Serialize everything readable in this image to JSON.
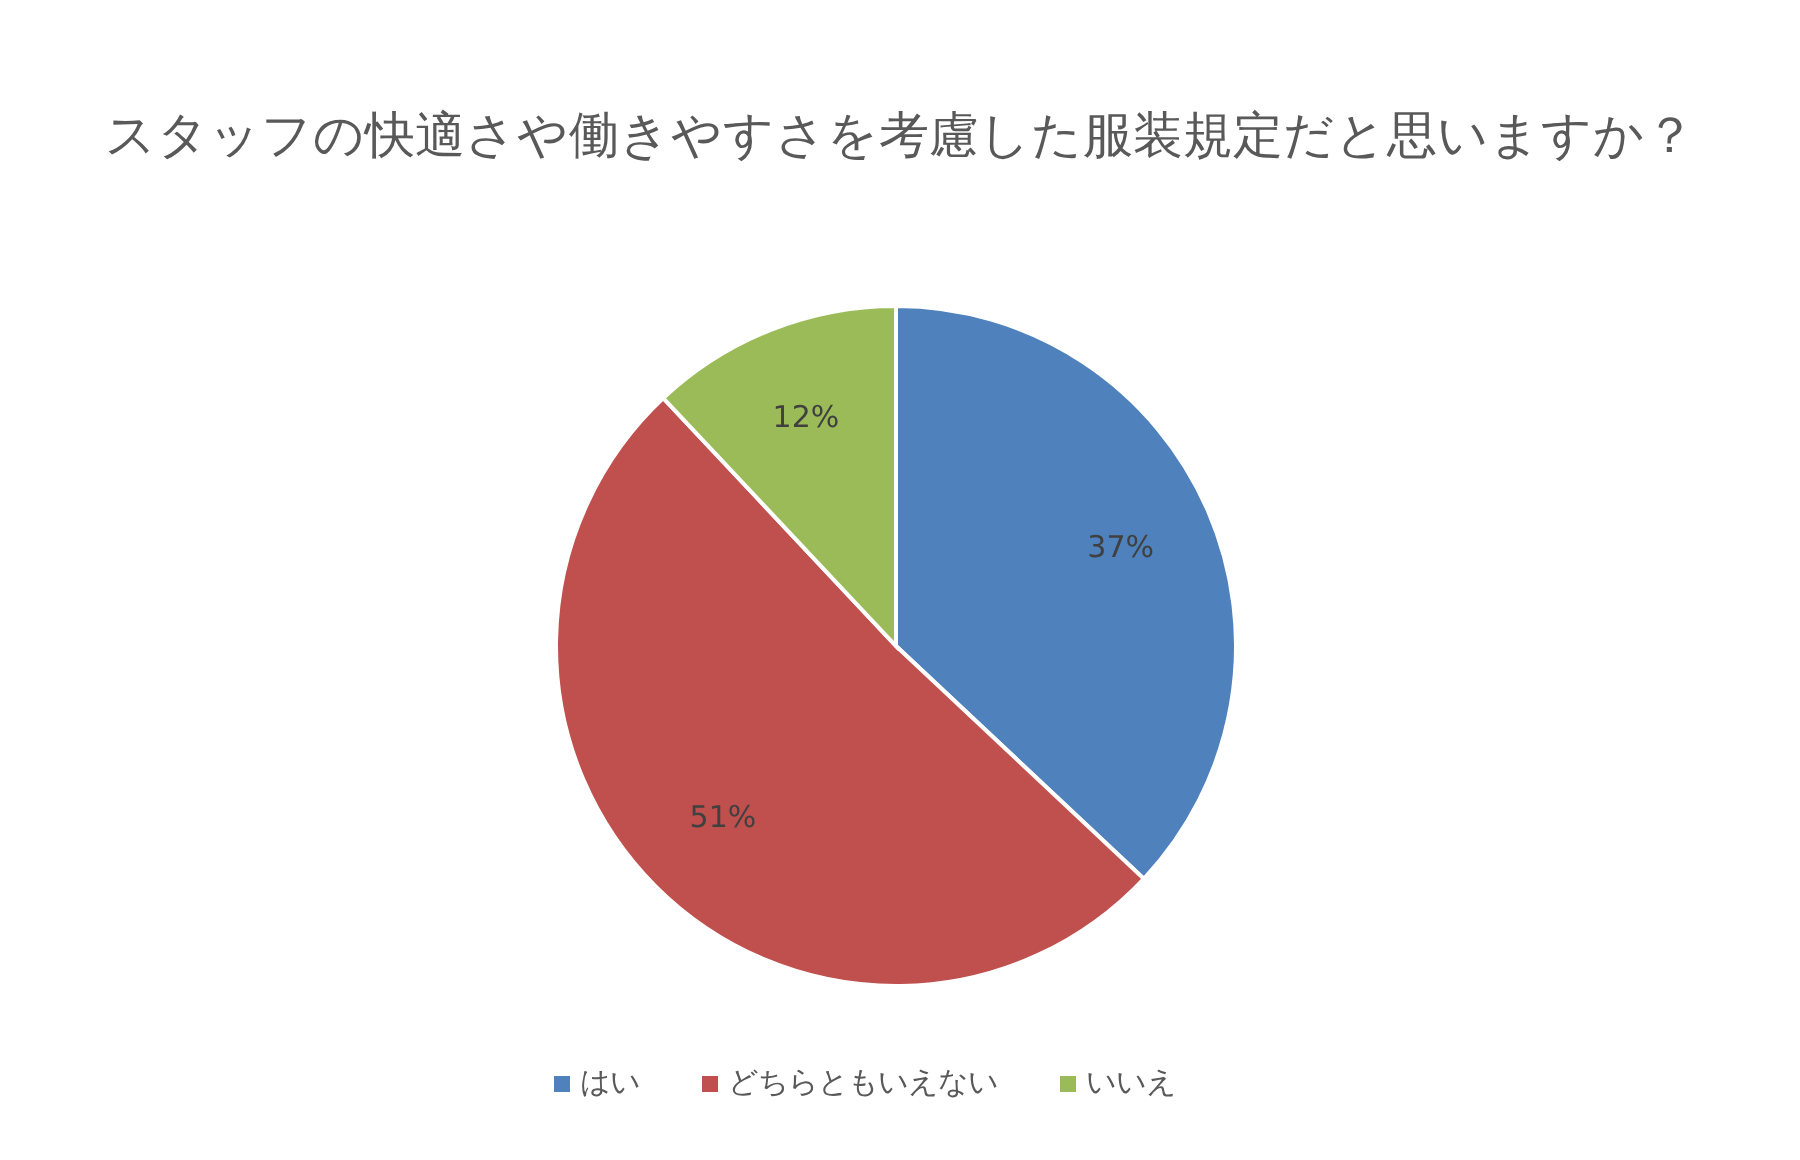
{
  "chart_data": {
    "type": "pie",
    "title": "スタッフの快適さや働きやすさを考慮した服装規定だと思いますか？",
    "categories": [
      "はい",
      "どちらともいえない",
      "いいえ"
    ],
    "values": [
      37,
      51,
      12
    ],
    "value_labels": [
      "37%",
      "51%",
      "12%"
    ],
    "colors": [
      "#4f81bd",
      "#c0504d",
      "#9bbb59"
    ],
    "legend": "bottom"
  }
}
